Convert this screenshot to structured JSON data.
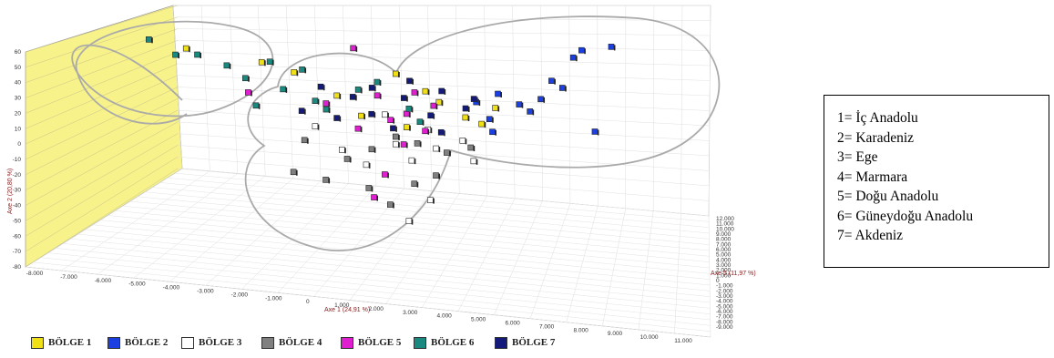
{
  "chart_data": {
    "type": "scatter",
    "title": "",
    "xlabel": "Axe 1 (24,91 %)",
    "ylabel": "Axe 2 (20,80 %)",
    "zlabel": "Axe 5 (11,97 %)",
    "xlim": [
      -8,
      11
    ],
    "ylim": [
      -80,
      60
    ],
    "zlim": [
      -9,
      12
    ],
    "x_ticks": [
      "-8.000",
      "-7.000",
      "-6.000",
      "-5.000",
      "-4.000",
      "-3.000",
      "-2.000",
      "-1.000",
      "0",
      "1.000",
      "2.000",
      "3.000",
      "4.000",
      "5.000",
      "6.000",
      "7.000",
      "8.000",
      "9.000",
      "10.000",
      "11.000"
    ],
    "y_ticks": [
      "60",
      "50",
      "40",
      "30",
      "20",
      "10",
      "0",
      "-10",
      "-20",
      "-30",
      "-40",
      "-50",
      "-60",
      "-70",
      "-80"
    ],
    "z_ticks": [
      "12.000",
      "11.000",
      "10.000",
      "9.000",
      "8.000",
      "7.000",
      "6.000",
      "5.000",
      "4.000",
      "3.000",
      "2.000",
      "1.000",
      "0",
      "-1.000",
      "-2.000",
      "-3.000",
      "-4.000",
      "-5.000",
      "-6.000",
      "-7.000",
      "-8.000",
      "-9.000"
    ],
    "grid": true,
    "legend_position": "bottom",
    "series": [
      {
        "name": "BÖLGE 1",
        "color": "#f0e018",
        "values": [
          [
            -6.5,
            55,
            -2
          ],
          [
            -3.2,
            45,
            3
          ],
          [
            -1.8,
            38,
            5
          ],
          [
            1.5,
            42,
            0
          ],
          [
            2.8,
            30,
            2
          ],
          [
            3.5,
            22,
            4
          ],
          [
            4.0,
            15,
            -1
          ],
          [
            2.2,
            5,
            3
          ],
          [
            0.8,
            10,
            6
          ],
          [
            -0.5,
            25,
            2
          ],
          [
            4.8,
            10,
            1
          ],
          [
            5.5,
            20,
            3
          ]
        ]
      },
      {
        "name": "BÖLGE 2",
        "color": "#1b3fe0",
        "values": [
          [
            8.5,
            55,
            4
          ],
          [
            9.2,
            58,
            8
          ],
          [
            7.5,
            40,
            2
          ],
          [
            8.0,
            35,
            3
          ],
          [
            7.0,
            28,
            1
          ],
          [
            6.5,
            20,
            0
          ],
          [
            6.0,
            25,
            -1
          ],
          [
            5.5,
            30,
            2
          ],
          [
            4.8,
            15,
            -2
          ],
          [
            5.2,
            5,
            1
          ],
          [
            10.5,
            60,
            10
          ],
          [
            9.5,
            5,
            6
          ],
          [
            4.5,
            25,
            0
          ]
        ]
      },
      {
        "name": "BÖLGE 3",
        "color": "#ffffff",
        "values": [
          [
            1.5,
            -5,
            0
          ],
          [
            2.0,
            -15,
            -1
          ],
          [
            2.5,
            -40,
            -3
          ],
          [
            1.8,
            -55,
            -2
          ],
          [
            0.5,
            -20,
            1
          ],
          [
            -0.5,
            -10,
            0
          ],
          [
            3.2,
            -8,
            2
          ],
          [
            2.8,
            5,
            1
          ],
          [
            1.0,
            15,
            -1
          ],
          [
            -1.5,
            5,
            0
          ],
          [
            4.5,
            -15,
            1
          ],
          [
            3.8,
            0,
            -2
          ]
        ]
      },
      {
        "name": "BÖLGE 4",
        "color": "#808080",
        "values": [
          [
            -2.5,
            -25,
            -2
          ],
          [
            -1.2,
            -30,
            -1
          ],
          [
            0.5,
            -35,
            0
          ],
          [
            1.2,
            -45,
            -1
          ],
          [
            2.0,
            -30,
            -2
          ],
          [
            3.0,
            -25,
            0
          ],
          [
            3.5,
            -10,
            1
          ],
          [
            2.5,
            -5,
            2
          ],
          [
            -0.5,
            -15,
            -2
          ],
          [
            1.5,
            0,
            0
          ],
          [
            4.2,
            -5,
            -1
          ],
          [
            -1.8,
            -5,
            1
          ],
          [
            0.8,
            -10,
            2
          ]
        ]
      },
      {
        "name": "BÖLGE 5",
        "color": "#e020d0",
        "values": [
          [
            -3.8,
            25,
            2
          ],
          [
            0.5,
            55,
            6
          ],
          [
            1.2,
            25,
            4
          ],
          [
            2.0,
            15,
            1
          ],
          [
            2.5,
            5,
            -1
          ],
          [
            1.8,
            -5,
            0
          ],
          [
            1.0,
            -25,
            -1
          ],
          [
            0.5,
            -40,
            -2
          ],
          [
            1.5,
            10,
            2
          ],
          [
            -1.0,
            20,
            1
          ],
          [
            3.2,
            20,
            3
          ],
          [
            2.2,
            30,
            0
          ],
          [
            0.0,
            5,
            -1
          ]
        ]
      },
      {
        "name": "BÖLGE 6",
        "color": "#1a8a80",
        "values": [
          [
            -7.5,
            58,
            2
          ],
          [
            -6.8,
            50,
            -1
          ],
          [
            -5.5,
            48,
            4
          ],
          [
            -4.5,
            42,
            3
          ],
          [
            -4.0,
            35,
            1
          ],
          [
            -3.8,
            18,
            -1
          ],
          [
            -2.5,
            28,
            2
          ],
          [
            -1.5,
            22,
            0
          ],
          [
            -0.8,
            15,
            3
          ],
          [
            0.2,
            30,
            1
          ],
          [
            1.0,
            35,
            2
          ],
          [
            1.8,
            20,
            -2
          ],
          [
            2.5,
            10,
            1
          ],
          [
            -1.5,
            40,
            5
          ],
          [
            -2.8,
            45,
            4
          ]
        ]
      },
      {
        "name": "BÖLGE 7",
        "color": "#131a7a",
        "values": [
          [
            -1.0,
            30,
            3
          ],
          [
            0.0,
            25,
            1
          ],
          [
            1.0,
            30,
            4
          ],
          [
            2.0,
            25,
            2
          ],
          [
            2.8,
            15,
            0
          ],
          [
            3.5,
            30,
            3
          ],
          [
            4.2,
            20,
            1
          ],
          [
            0.5,
            15,
            -1
          ],
          [
            1.5,
            5,
            1
          ],
          [
            -0.5,
            10,
            2
          ],
          [
            2.5,
            35,
            5
          ],
          [
            3.0,
            5,
            -2
          ],
          [
            4.8,
            25,
            4
          ],
          [
            -2.0,
            15,
            0
          ]
        ]
      }
    ]
  },
  "legend_box": {
    "items": [
      "1= İç Anadolu",
      "2= Karadeniz",
      "3= Ege",
      "4= Marmara",
      "5= Doğu Anadolu",
      "6= Güneydoğu Anadolu",
      "7= Akdeniz"
    ]
  }
}
